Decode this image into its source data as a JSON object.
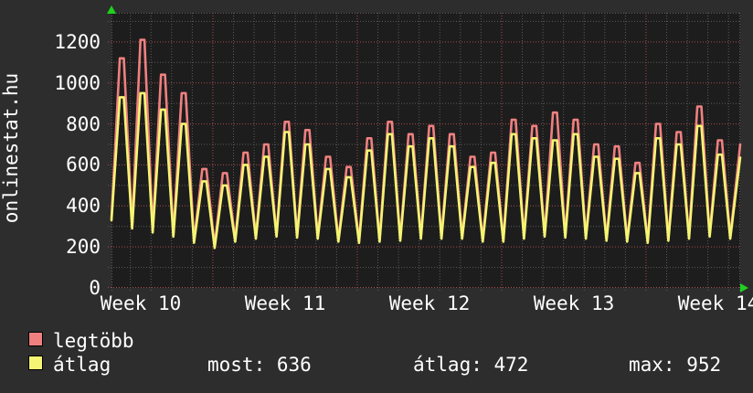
{
  "title": "onlinestat.hu",
  "legend": {
    "items": [
      {
        "label": "legtöbb",
        "color": "#f08080"
      },
      {
        "label": "átlag",
        "color": "#f5f573"
      }
    ],
    "stats": [
      {
        "text": "most: 636"
      },
      {
        "text": "átlag: 472"
      },
      {
        "text": "max: 952"
      }
    ]
  },
  "chart_data": {
    "type": "line",
    "title": "onlinestat.hu",
    "x_labels": [
      "Week 10",
      "Week 11",
      "Week 12",
      "Week 13",
      "Week 14"
    ],
    "y_ticks": [
      0,
      200,
      400,
      600,
      800,
      1000,
      1200
    ],
    "ylim": [
      0,
      1342
    ],
    "grid": "dotted",
    "grid_minor_color": "#5c5c5c",
    "grid_major_color": "#a94b4b",
    "plot_bg": "#1d1d1d",
    "outer_bg": "#2d2d2d",
    "axis_arrow_color": "#1fd11f",
    "legend_position": "bottom-left",
    "days_per_week": 7,
    "stats": {
      "most": 636,
      "atlag": 472,
      "max": 952
    },
    "series": [
      {
        "name": "legtöbb",
        "color": "#f08080",
        "peaks": [
          1120,
          1210,
          1040,
          950,
          580,
          560,
          660,
          700,
          810,
          770,
          640,
          590,
          730,
          810,
          750,
          790,
          750,
          640,
          660,
          820,
          790,
          855,
          820,
          700,
          690,
          610,
          800,
          760,
          885,
          720
        ],
        "troughs": [
          340,
          300,
          280,
          260,
          230,
          205,
          235,
          250,
          260,
          255,
          250,
          235,
          230,
          235,
          240,
          250,
          250,
          250,
          235,
          235,
          250,
          260,
          255,
          250,
          240,
          235,
          230,
          240,
          250,
          260,
          250
        ],
        "end": 700
      },
      {
        "name": "átlag",
        "color": "#f5f573",
        "peaks": [
          930,
          950,
          870,
          800,
          520,
          500,
          600,
          640,
          760,
          700,
          580,
          540,
          670,
          750,
          690,
          730,
          690,
          590,
          610,
          750,
          730,
          720,
          750,
          640,
          630,
          560,
          730,
          700,
          790,
          650
        ],
        "troughs": [
          330,
          290,
          270,
          250,
          220,
          195,
          225,
          240,
          250,
          245,
          240,
          225,
          220,
          225,
          230,
          240,
          240,
          240,
          225,
          225,
          240,
          250,
          245,
          240,
          230,
          225,
          220,
          230,
          240,
          250,
          240
        ],
        "end": 636
      }
    ]
  }
}
